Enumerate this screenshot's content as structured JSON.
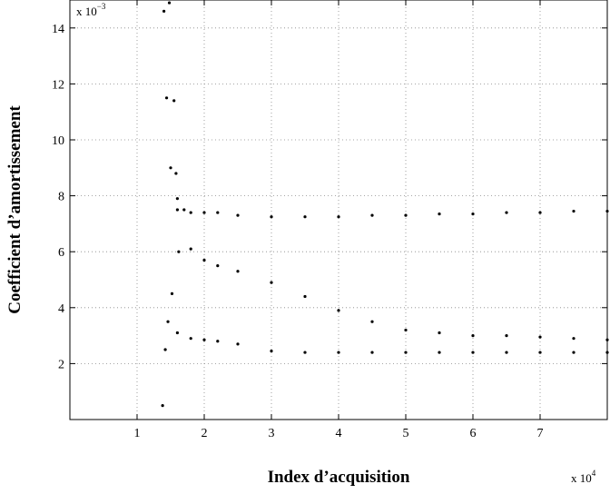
{
  "chart_data": {
    "type": "scatter",
    "title": "",
    "xlabel": "Index d’acquisition",
    "ylabel": "Coefficient d’amortissement",
    "x_multiplier_base": "x 10",
    "x_multiplier_exp": "4",
    "y_multiplier_base": "x 10",
    "y_multiplier_exp": "−3",
    "xlim": [
      0,
      8
    ],
    "ylim": [
      0,
      15
    ],
    "xticks": [
      "1",
      "2",
      "3",
      "4",
      "5",
      "6",
      "7"
    ],
    "yticks": [
      "2",
      "4",
      "6",
      "8",
      "10",
      "12",
      "14"
    ],
    "grid": true,
    "marker_color": "#000000",
    "series": [
      {
        "x": [
          1.6,
          1.7,
          1.8,
          2.0,
          2.2,
          2.5,
          3.0,
          3.5,
          4.0,
          4.5,
          5.0,
          5.5,
          6.0,
          6.5,
          7.0,
          7.5,
          8.0
        ],
        "y": [
          7.9,
          7.5,
          7.4,
          7.4,
          7.4,
          7.3,
          7.25,
          7.25,
          7.25,
          7.3,
          7.3,
          7.35,
          7.35,
          7.4,
          7.4,
          7.45,
          7.45
        ]
      },
      {
        "x": [
          1.6,
          1.8,
          2.0,
          2.2,
          2.5,
          3.0,
          3.5,
          4.0,
          4.5,
          5.0,
          5.5,
          6.0,
          6.5,
          7.0,
          7.5,
          8.0
        ],
        "y": [
          7.5,
          6.1,
          5.7,
          5.5,
          5.3,
          4.9,
          4.4,
          3.9,
          3.5,
          3.2,
          3.1,
          3.0,
          3.0,
          2.95,
          2.9,
          2.85
        ]
      },
      {
        "x": [
          1.6,
          1.8,
          2.0,
          2.2,
          2.5,
          3.0,
          3.5,
          4.0,
          4.5,
          5.0,
          5.5,
          6.0,
          6.5,
          7.0,
          7.5,
          8.0
        ],
        "y": [
          3.1,
          2.9,
          2.85,
          2.8,
          2.7,
          2.45,
          2.4,
          2.4,
          2.4,
          2.4,
          2.4,
          2.4,
          2.4,
          2.4,
          2.4,
          2.4
        ]
      },
      {
        "x": [
          1.38,
          1.4,
          1.42,
          1.44,
          1.46,
          1.48,
          1.5,
          1.52,
          1.55,
          1.58,
          1.62
        ],
        "y": [
          0.5,
          14.6,
          2.5,
          11.5,
          3.5,
          14.9,
          9.0,
          4.5,
          11.4,
          8.8,
          6.0
        ]
      }
    ]
  }
}
